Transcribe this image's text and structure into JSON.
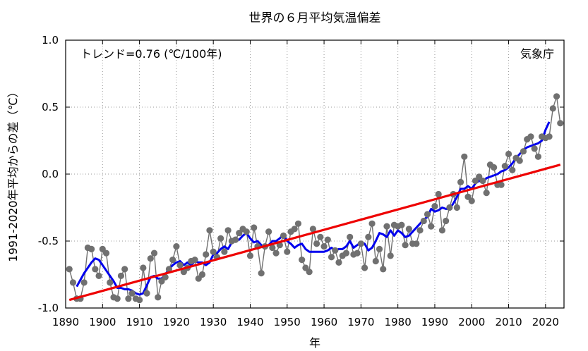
{
  "chart_data": {
    "type": "line",
    "title": "世界の６月平均気温偏差",
    "xlabel": "年",
    "ylabel": "1991-2020年平均からの差（℃）",
    "xlim": [
      1890,
      2025
    ],
    "ylim": [
      -1.0,
      1.0
    ],
    "x_ticks": [
      1890,
      1900,
      1910,
      1920,
      1930,
      1940,
      1950,
      1960,
      1970,
      1980,
      1990,
      2000,
      2010,
      2020
    ],
    "y_ticks": [
      -1.0,
      -0.5,
      0.0,
      0.5,
      1.0
    ],
    "y_tick_labels": [
      "-1.0",
      "-0.5",
      "0.0",
      "0.5",
      "1.0"
    ],
    "grid": true,
    "annotations": {
      "trend_text": "トレンド=0.76 (℃/100年)",
      "source": "気象庁"
    },
    "colors": {
      "annual": "#707070",
      "moving_average": "#0000ee",
      "trend": "#ee0000",
      "grid": "#999999"
    },
    "series": [
      {
        "name": "",
        "kind": "annual",
        "x_start": 1891,
        "values": [
          -0.71,
          -0.81,
          -0.93,
          -0.93,
          -0.81,
          -0.55,
          -0.56,
          -0.71,
          -0.76,
          -0.56,
          -0.59,
          -0.81,
          -0.92,
          -0.93,
          -0.76,
          -0.71,
          -0.93,
          -0.89,
          -0.93,
          -0.94,
          -0.7,
          -0.89,
          -0.63,
          -0.59,
          -0.92,
          -0.8,
          -0.77,
          -0.71,
          -0.64,
          -0.54,
          -0.68,
          -0.73,
          -0.7,
          -0.65,
          -0.64,
          -0.78,
          -0.75,
          -0.6,
          -0.42,
          -0.58,
          -0.62,
          -0.48,
          -0.58,
          -0.42,
          -0.5,
          -0.49,
          -0.44,
          -0.41,
          -0.43,
          -0.61,
          -0.4,
          -0.54,
          -0.74,
          -0.54,
          -0.43,
          -0.55,
          -0.59,
          -0.53,
          -0.46,
          -0.58,
          -0.43,
          -0.41,
          -0.37,
          -0.64,
          -0.7,
          -0.73,
          -0.41,
          -0.52,
          -0.47,
          -0.54,
          -0.49,
          -0.62,
          -0.57,
          -0.66,
          -0.61,
          -0.59,
          -0.47,
          -0.6,
          -0.59,
          -0.52,
          -0.7,
          -0.47,
          -0.37,
          -0.65,
          -0.56,
          -0.71,
          -0.39,
          -0.61,
          -0.38,
          -0.39,
          -0.38,
          -0.53,
          -0.41,
          -0.52,
          -0.52,
          -0.42,
          -0.35,
          -0.3,
          -0.39,
          -0.24,
          -0.15,
          -0.42,
          -0.35,
          -0.25,
          -0.15,
          -0.25,
          -0.06,
          0.13,
          -0.17,
          -0.2,
          -0.05,
          -0.02,
          -0.05,
          -0.14,
          0.07,
          0.05,
          -0.08,
          -0.08,
          0.06,
          0.15,
          0.03,
          0.12,
          0.1,
          0.17,
          0.26,
          0.28,
          0.19,
          0.13,
          0.28,
          0.27,
          0.28,
          0.49,
          0.58,
          0.38
        ]
      },
      {
        "name": "",
        "kind": "moving_average",
        "x_start": 1893,
        "values": [
          -0.84,
          -0.79,
          -0.74,
          -0.7,
          -0.66,
          -0.63,
          -0.64,
          -0.68,
          -0.72,
          -0.76,
          -0.8,
          -0.85,
          -0.85,
          -0.86,
          -0.86,
          -0.87,
          -0.89,
          -0.9,
          -0.89,
          -0.83,
          -0.77,
          -0.76,
          -0.78,
          -0.78,
          -0.75,
          -0.71,
          -0.68,
          -0.66,
          -0.65,
          -0.68,
          -0.66,
          -0.68,
          -0.65,
          -0.66,
          -0.66,
          -0.68,
          -0.66,
          -0.6,
          -0.59,
          -0.56,
          -0.54,
          -0.56,
          -0.51,
          -0.49,
          -0.49,
          -0.46,
          -0.44,
          -0.48,
          -0.51,
          -0.5,
          -0.53,
          -0.55,
          -0.53,
          -0.5,
          -0.5,
          -0.48,
          -0.45,
          -0.5,
          -0.52,
          -0.55,
          -0.53,
          -0.52,
          -0.56,
          -0.58,
          -0.58,
          -0.58,
          -0.58,
          -0.58,
          -0.57,
          -0.55,
          -0.57,
          -0.56,
          -0.56,
          -0.54,
          -0.5,
          -0.55,
          -0.53,
          -0.51,
          -0.52,
          -0.57,
          -0.55,
          -0.5,
          -0.44,
          -0.45,
          -0.47,
          -0.42,
          -0.46,
          -0.42,
          -0.44,
          -0.47,
          -0.46,
          -0.43,
          -0.4,
          -0.37,
          -0.34,
          -0.32,
          -0.26,
          -0.28,
          -0.27,
          -0.25,
          -0.26,
          -0.26,
          -0.22,
          -0.17,
          -0.11,
          -0.11,
          -0.09,
          -0.11,
          -0.07,
          -0.05,
          -0.06,
          -0.03,
          -0.02,
          -0.01,
          0.0,
          0.02,
          0.03,
          0.05,
          0.08,
          0.12,
          0.15,
          0.18,
          0.2,
          0.21,
          0.22,
          0.23,
          0.25,
          0.33,
          0.39
        ]
      },
      {
        "name": "",
        "kind": "trend",
        "x": [
          1891,
          2024
        ],
        "values": [
          -0.94,
          0.07
        ]
      }
    ]
  }
}
